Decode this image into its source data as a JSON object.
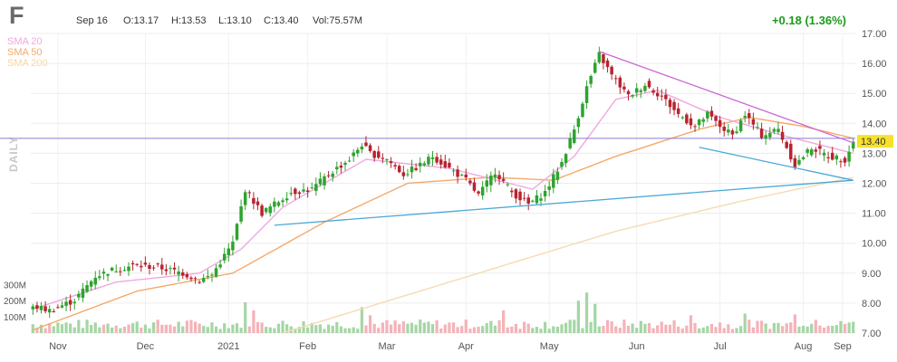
{
  "header": {
    "ticker": "F",
    "date": "Sep 16",
    "open": "O:13.17",
    "high": "H:13.53",
    "low": "L:13.10",
    "close": "C:13.40",
    "volume": "Vol:75.57M",
    "change": "+0.18 (1.36%)"
  },
  "legend": {
    "sma20": "SMA 20",
    "sma50": "SMA 50",
    "sma200": "SMA 200"
  },
  "timeframe_label": "DAILY",
  "colors": {
    "up": "#2ea32e",
    "down": "#b8232f",
    "up_volume": "#a5d6a5",
    "down_volume": "#f4b3b8",
    "sma20": "#f0a8e0",
    "sma50": "#f5a96a",
    "sma200": "#f6dbb0",
    "trendline_blue": "#4aa8d8",
    "trendline_purple": "#cc66d8",
    "horizontal_line": "#8a7ad8",
    "last_price_bg": "#f7e12a",
    "change_color": "#1a9b1a"
  },
  "chart_data": {
    "type": "candlestick",
    "title": "F",
    "period": "DAILY",
    "ylim": [
      7.0,
      17.0
    ],
    "y_ticks": [
      "17.00",
      "16.00",
      "15.00",
      "14.00",
      "13.00",
      "12.00",
      "11.00",
      "10.00",
      "9.00",
      "8.00",
      "7.00"
    ],
    "volume_ticks": [
      "300M",
      "200M",
      "100M"
    ],
    "volume_max": 380,
    "x_ticks": [
      "Nov",
      "Dec",
      "2021",
      "Feb",
      "Mar",
      "Apr",
      "May",
      "Jun",
      "Jul",
      "Aug",
      "Sep"
    ],
    "last_price_label": "13.40",
    "horizontal_line_level": 13.5,
    "anchors": [
      {
        "i": 0,
        "c": 7.9
      },
      {
        "i": 4,
        "c": 7.75
      },
      {
        "i": 10,
        "c": 8.1
      },
      {
        "i": 15,
        "c": 8.9
      },
      {
        "i": 19,
        "c": 9.1
      },
      {
        "i": 24,
        "c": 9.25
      },
      {
        "i": 30,
        "c": 9.2
      },
      {
        "i": 36,
        "c": 9.0
      },
      {
        "i": 40,
        "c": 8.75
      },
      {
        "i": 43,
        "c": 8.95
      },
      {
        "i": 48,
        "c": 10.0
      },
      {
        "i": 51,
        "c": 11.8
      },
      {
        "i": 55,
        "c": 11.0
      },
      {
        "i": 58,
        "c": 11.3
      },
      {
        "i": 62,
        "c": 11.7
      },
      {
        "i": 67,
        "c": 11.8
      },
      {
        "i": 71,
        "c": 12.3
      },
      {
        "i": 76,
        "c": 12.8
      },
      {
        "i": 79,
        "c": 13.3
      },
      {
        "i": 81,
        "c": 13.0
      },
      {
        "i": 85,
        "c": 12.8
      },
      {
        "i": 89,
        "c": 12.3
      },
      {
        "i": 93,
        "c": 12.6
      },
      {
        "i": 96,
        "c": 12.9
      },
      {
        "i": 101,
        "c": 12.4
      },
      {
        "i": 104,
        "c": 12.1
      },
      {
        "i": 107,
        "c": 11.6
      },
      {
        "i": 111,
        "c": 12.4
      },
      {
        "i": 115,
        "c": 11.7
      },
      {
        "i": 119,
        "c": 11.3
      },
      {
        "i": 123,
        "c": 11.7
      },
      {
        "i": 127,
        "c": 12.7
      },
      {
        "i": 130,
        "c": 13.8
      },
      {
        "i": 133,
        "c": 15.2
      },
      {
        "i": 136,
        "c": 16.3
      },
      {
        "i": 139,
        "c": 15.6
      },
      {
        "i": 143,
        "c": 14.9
      },
      {
        "i": 147,
        "c": 15.3
      },
      {
        "i": 151,
        "c": 14.9
      },
      {
        "i": 155,
        "c": 14.3
      },
      {
        "i": 159,
        "c": 13.9
      },
      {
        "i": 162,
        "c": 14.3
      },
      {
        "i": 165,
        "c": 13.9
      },
      {
        "i": 168,
        "c": 13.6
      },
      {
        "i": 171,
        "c": 14.3
      },
      {
        "i": 175,
        "c": 13.6
      },
      {
        "i": 179,
        "c": 13.8
      },
      {
        "i": 183,
        "c": 12.6
      },
      {
        "i": 187,
        "c": 13.2
      },
      {
        "i": 191,
        "c": 12.9
      },
      {
        "i": 195,
        "c": 12.8
      },
      {
        "i": 197,
        "c": 13.4
      }
    ],
    "sma20": [
      {
        "i": 0,
        "v": 7.8
      },
      {
        "i": 20,
        "v": 8.7
      },
      {
        "i": 40,
        "v": 9.0
      },
      {
        "i": 50,
        "v": 9.8
      },
      {
        "i": 60,
        "v": 11.2
      },
      {
        "i": 80,
        "v": 12.8
      },
      {
        "i": 100,
        "v": 12.5
      },
      {
        "i": 120,
        "v": 11.8
      },
      {
        "i": 130,
        "v": 12.9
      },
      {
        "i": 140,
        "v": 14.8
      },
      {
        "i": 150,
        "v": 15.1
      },
      {
        "i": 165,
        "v": 14.2
      },
      {
        "i": 180,
        "v": 13.6
      },
      {
        "i": 197,
        "v": 13.0
      }
    ],
    "sma50": [
      {
        "i": 0,
        "v": 7.1
      },
      {
        "i": 25,
        "v": 8.4
      },
      {
        "i": 48,
        "v": 9.0
      },
      {
        "i": 70,
        "v": 10.7
      },
      {
        "i": 90,
        "v": 12.0
      },
      {
        "i": 110,
        "v": 12.2
      },
      {
        "i": 125,
        "v": 12.1
      },
      {
        "i": 140,
        "v": 12.9
      },
      {
        "i": 160,
        "v": 13.8
      },
      {
        "i": 172,
        "v": 14.2
      },
      {
        "i": 185,
        "v": 13.9
      },
      {
        "i": 197,
        "v": 13.5
      }
    ],
    "sma200": [
      {
        "i": 60,
        "v": 7.0
      },
      {
        "i": 100,
        "v": 8.7
      },
      {
        "i": 140,
        "v": 10.4
      },
      {
        "i": 170,
        "v": 11.4
      },
      {
        "i": 197,
        "v": 12.2
      }
    ],
    "trendlines": [
      {
        "name": "blue-support",
        "from": {
          "i": 58,
          "v": 10.6
        },
        "to": {
          "i": 197,
          "v": 12.1
        }
      },
      {
        "name": "purple-resistance",
        "from": {
          "i": 136,
          "v": 16.4
        },
        "to": {
          "i": 197,
          "v": 13.35
        }
      },
      {
        "name": "blue-lower",
        "from": {
          "i": 160,
          "v": 13.2
        },
        "to": {
          "i": 197,
          "v": 12.1
        }
      }
    ],
    "volume_spikes": [
      {
        "i": 51,
        "v": 190
      },
      {
        "i": 53,
        "v": 140
      },
      {
        "i": 79,
        "v": 160
      },
      {
        "i": 81,
        "v": 110
      },
      {
        "i": 113,
        "v": 140
      },
      {
        "i": 131,
        "v": 200
      },
      {
        "i": 133,
        "v": 250
      },
      {
        "i": 135,
        "v": 180
      },
      {
        "i": 158,
        "v": 110
      },
      {
        "i": 171,
        "v": 120
      },
      {
        "i": 183,
        "v": 115
      }
    ]
  }
}
